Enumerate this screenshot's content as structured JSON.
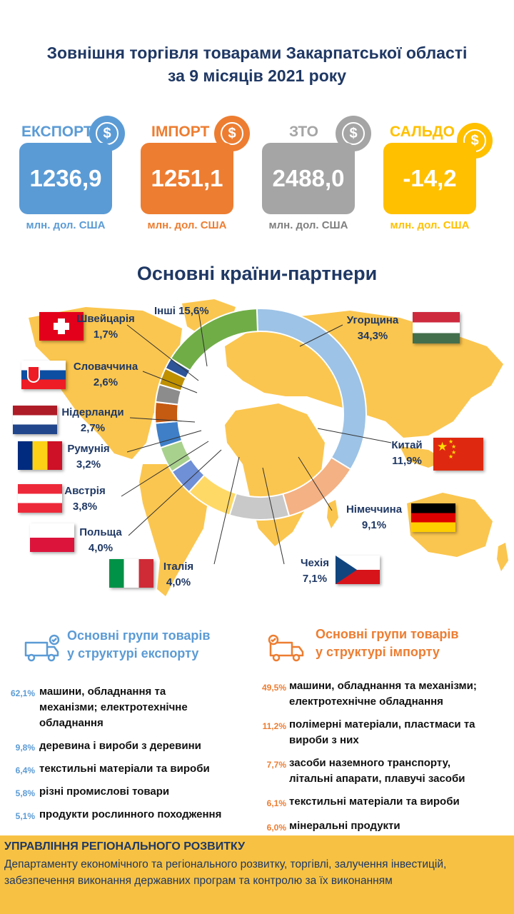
{
  "title_line1": "Зовнішня торгівля товарами Закарпатської області",
  "title_line2": "за 9 місяців 2021 року",
  "kpis": [
    {
      "label": "ЕКСПОРТ",
      "value": "1236,9",
      "unit": "млн. дол. США",
      "color": "#5b9bd5",
      "icon": "dollar-coin-icon"
    },
    {
      "label": "ІМПОРТ",
      "value": "1251,1",
      "unit": "млн. дол. США",
      "color": "#ed7d31",
      "icon": "dollar-coin-icon"
    },
    {
      "label": "ЗТО",
      "value": "2488,0",
      "unit": "млн. дол. США",
      "color": "#a5a5a5",
      "icon": "dollar-coin-icon"
    },
    {
      "label": "САЛЬДО",
      "value": "-14,2",
      "unit": "млн. дол. США",
      "color": "#ffc000",
      "icon": "dollar-coin-icon"
    }
  ],
  "partners_title": "Основні країни-партнери",
  "chart_data": {
    "type": "pie",
    "style": "donut",
    "slices": [
      {
        "name": "Угорщина",
        "value": 34.3,
        "label": "34,3%",
        "color": "#9dc3e6"
      },
      {
        "name": "Китай",
        "value": 11.9,
        "label": "11,9%",
        "color": "#f4b183"
      },
      {
        "name": "Німеччина",
        "value": 9.1,
        "label": "9,1%",
        "color": "#c9c9c9"
      },
      {
        "name": "Чехія",
        "value": 7.1,
        "label": "7,1%",
        "color": "#ffd966"
      },
      {
        "name": "Італія",
        "value": 4.0,
        "label": "4,0%",
        "color": "#6f8fd6"
      },
      {
        "name": "Польща",
        "value": 4.0,
        "label": "4,0%",
        "color": "#a9d18e"
      },
      {
        "name": "Австрія",
        "value": 3.8,
        "label": "3,8%",
        "color": "#3f7fc8"
      },
      {
        "name": "Румунія",
        "value": 3.2,
        "label": "3,2%",
        "color": "#c55a11"
      },
      {
        "name": "Нідерланди",
        "value": 2.7,
        "label": "2,7%",
        "color": "#8c8c8c"
      },
      {
        "name": "Словаччина",
        "value": 2.6,
        "label": "2,6%",
        "color": "#bf9000"
      },
      {
        "name": "Швейцарія",
        "value": 1.7,
        "label": "1,7%",
        "color": "#2e5597"
      },
      {
        "name": "Інші",
        "value": 15.6,
        "label": "15,6%",
        "color": "#70ad47"
      }
    ]
  },
  "labels": {
    "others": "Інші 15,6%",
    "switzerland": [
      "Швейцарія",
      "1,7%"
    ],
    "slovakia": [
      "Словаччина",
      "2,6%"
    ],
    "netherlands": [
      "Нідерланди",
      "2,7%"
    ],
    "romania": [
      "Румунія",
      "3,2%"
    ],
    "austria": [
      "Австрія",
      "3,8%"
    ],
    "poland": [
      "Польща",
      "4,0%"
    ],
    "italy": [
      "Італія",
      "4,0%"
    ],
    "czechia": [
      "Чехія",
      "7,1%"
    ],
    "germany": [
      "Німеччина",
      "9,1%"
    ],
    "china": [
      "Китай",
      "11,9%"
    ],
    "hungary": [
      "Угорщина",
      "34,3%"
    ]
  },
  "export_title": [
    "Основні групи товарів",
    "у структурі експорту"
  ],
  "import_title": [
    "Основні групи товарів",
    "у структурі імпорту"
  ],
  "export_color": "#5b9bd5",
  "import_color": "#ed7d31",
  "export_goods": [
    {
      "pct": "62,1%",
      "text": "машини, обладнання та механізми;  електротехнічне обладнання"
    },
    {
      "pct": "9,8%",
      "text": "деревина і вироби з деревини"
    },
    {
      "pct": "6,4%",
      "text": "текстильні матеріали та вироби"
    },
    {
      "pct": "5,8%",
      "text": "різні промислові товари"
    },
    {
      "pct": "5,1%",
      "text": "продукти рослинного походження"
    }
  ],
  "import_goods": [
    {
      "pct": "49,5%",
      "text": "машини, обладнання та механізми; електротехнічне обладнання"
    },
    {
      "pct": "11,2%",
      "text": "полімерні матеріали, пластмаси та вироби з них"
    },
    {
      "pct": "7,7%",
      "text": "засоби наземного транспорту, літальні апарати, плавучі засоби"
    },
    {
      "pct": "6,1%",
      "text": "текстильні матеріали та вироби"
    },
    {
      "pct": "6,0%",
      "text": "мінеральні продукти"
    }
  ],
  "footer_heading": "УПРАВЛІННЯ РЕГІОНАЛЬНОГО РОЗВИТКУ",
  "footer_text": "Департаменту економічного та регіонального розвитку, торгівлі, залучення інвестицій, забезпечення виконання державних програм та контролю за їх виконанням"
}
